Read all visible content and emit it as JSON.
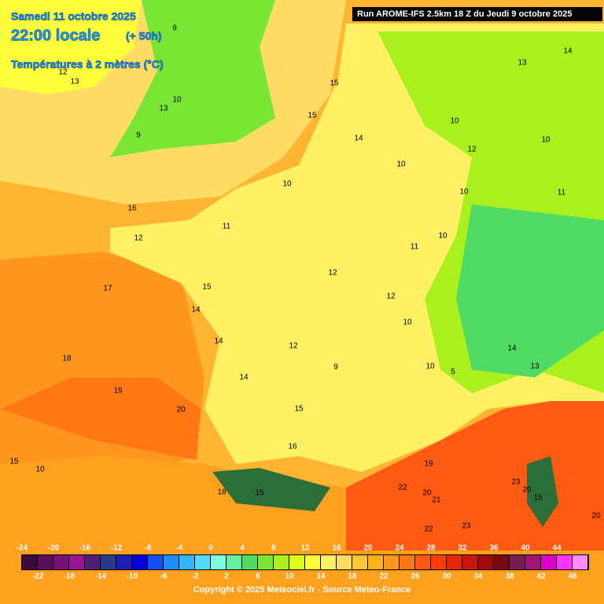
{
  "header": {
    "date": "Samedi 11 octobre 2025",
    "time": "22:00 locale",
    "offset": "(+ 50h)",
    "variable": "Températures à 2 mètres (°C)",
    "run": "Run AROME-IFS 2.5km 18 Z du Jeudi 9 octobre 2025"
  },
  "map_labels": [
    18,
    19,
    20,
    17,
    16,
    12,
    15,
    14,
    14,
    15,
    16,
    12,
    9,
    12,
    15,
    15,
    14,
    10,
    10,
    10,
    12,
    10,
    10,
    11,
    12,
    10,
    10,
    5,
    14,
    13,
    10,
    11,
    14,
    13,
    19,
    20,
    21,
    23,
    20,
    23,
    22,
    22,
    15,
    10,
    9,
    10,
    9,
    13,
    12,
    13,
    11,
    14,
    18,
    15,
    20,
    15
  ],
  "colorbar": {
    "min": -24,
    "step": 2,
    "colors": [
      "#3c0a3c",
      "#5a0f5a",
      "#780f78",
      "#961496",
      "#501e78",
      "#283c8c",
      "#1e1eb4",
      "#0000dc",
      "#1450f0",
      "#1e8cff",
      "#32b4ff",
      "#50dcff",
      "#78ffe6",
      "#64f0a0",
      "#50dc64",
      "#78e632",
      "#aaf01e",
      "#dcff1e",
      "#ffff3c",
      "#fff064",
      "#ffdc64",
      "#ffc832",
      "#ffb41e",
      "#ff961e",
      "#ff7814",
      "#ff5a14",
      "#ff3c0a",
      "#e6280a",
      "#c8140a",
      "#a00a0a",
      "#780a14",
      "#781e50",
      "#a0147a",
      "#dc00c8",
      "#ff32ff",
      "#ff8cff"
    ],
    "top_ticks": [
      -24,
      -20,
      -16,
      -12,
      -8,
      -4,
      0,
      4,
      8,
      12,
      16,
      20,
      24,
      28,
      32,
      36,
      40,
      44
    ],
    "bottom_ticks": [
      -22,
      -18,
      -14,
      -10,
      -6,
      -2,
      2,
      6,
      10,
      14,
      18,
      22,
      26,
      30,
      34,
      38,
      42,
      46
    ]
  },
  "footer": "Copyright © 2025 Meteociel.fr - Source Meteo-France"
}
